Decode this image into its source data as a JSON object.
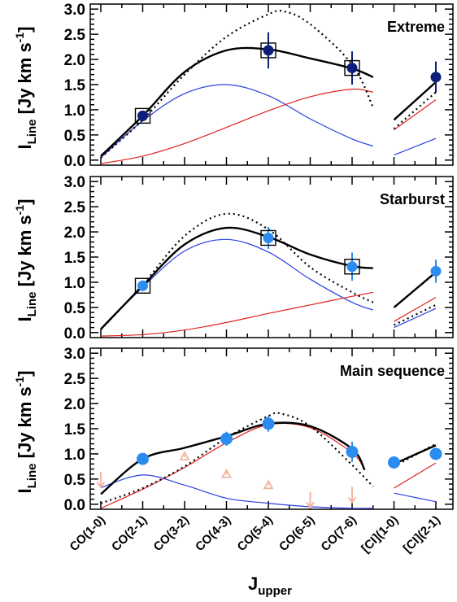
{
  "chart_data": {
    "type": "line",
    "xlabel": "J",
    "xlabel_sub": "upper",
    "ylabel": "I",
    "ylabel_sub": "Line",
    "yunit": "[Jy km s",
    "yunit_sup": "-1",
    "yunit_end": "]",
    "categories": [
      "CO(1-0)",
      "CO(2-1)",
      "CO(3-2)",
      "CO(4-3)",
      "CO(5-4)",
      "CO(6-5)",
      "CO(7-6)",
      "[CI](1-0)",
      "[CI](2-1)"
    ],
    "yticks": [
      0.0,
      0.5,
      1.0,
      1.5,
      2.0,
      2.5,
      3.0
    ],
    "ytick_labels": [
      "0.0",
      "0.5",
      "1.0",
      "1.5",
      "2.0",
      "2.5",
      "3.0"
    ],
    "ylim": [
      -0.1,
      3.1
    ],
    "panels": [
      {
        "title": "Extreme",
        "marker_color": "#0d1f7a",
        "boxed": true,
        "points": [
          {
            "x": 1,
            "y": 0.88,
            "err": 0.08
          },
          {
            "x": 4,
            "y": 2.18,
            "err": 0.36
          },
          {
            "x": 6,
            "y": 1.83,
            "err": 0.33
          },
          {
            "x": 8,
            "y": 1.65,
            "err": 0.31
          }
        ],
        "upper_limits": [],
        "lower_limits": [],
        "curves": {
          "total": [
            [
              0,
              0.08
            ],
            [
              1,
              0.88
            ],
            [
              2,
              1.75
            ],
            [
              3,
              2.18
            ],
            [
              4,
              2.2
            ],
            [
              5,
              2.02
            ],
            [
              6,
              1.82
            ],
            [
              6.5,
              1.65
            ]
          ],
          "dotted": [
            [
              0,
              0.05
            ],
            [
              1,
              0.8
            ],
            [
              2,
              1.7
            ],
            [
              3,
              2.45
            ],
            [
              4,
              2.9
            ],
            [
              4.4,
              2.95
            ],
            [
              5,
              2.7
            ],
            [
              6,
              1.9
            ],
            [
              6.5,
              1.05
            ]
          ],
          "blue": [
            [
              0,
              0.05
            ],
            [
              1,
              0.78
            ],
            [
              2,
              1.32
            ],
            [
              3,
              1.5
            ],
            [
              4,
              1.28
            ],
            [
              5,
              0.82
            ],
            [
              6,
              0.42
            ],
            [
              6.5,
              0.28
            ]
          ],
          "red": [
            [
              0,
              -0.07
            ],
            [
              1,
              0.08
            ],
            [
              2,
              0.33
            ],
            [
              3,
              0.65
            ],
            [
              4,
              0.98
            ],
            [
              5,
              1.26
            ],
            [
              6,
              1.41
            ],
            [
              6.5,
              1.35
            ]
          ],
          "ci_total": [
            [
              7,
              0.8
            ],
            [
              8,
              1.55
            ]
          ],
          "ci_dotted": [
            [
              7,
              0.62
            ],
            [
              8,
              1.35
            ]
          ],
          "ci_red": [
            [
              7,
              0.6
            ],
            [
              8,
              1.2
            ]
          ],
          "ci_blue": [
            [
              7,
              0.1
            ],
            [
              8,
              0.43
            ]
          ]
        }
      },
      {
        "title": "Starburst",
        "marker_color": "#2b8cf0",
        "boxed": true,
        "points": [
          {
            "x": 1,
            "y": 0.93,
            "err": 0.09
          },
          {
            "x": 4,
            "y": 1.88,
            "err": 0.22
          },
          {
            "x": 6,
            "y": 1.31,
            "err": 0.28
          },
          {
            "x": 8,
            "y": 1.22,
            "err": 0.23
          }
        ],
        "upper_limits": [],
        "lower_limits": [],
        "curves": {
          "total": [
            [
              0,
              0.07
            ],
            [
              1,
              0.93
            ],
            [
              2,
              1.75
            ],
            [
              3,
              2.08
            ],
            [
              4,
              1.9
            ],
            [
              5,
              1.55
            ],
            [
              6,
              1.32
            ],
            [
              6.5,
              1.28
            ]
          ],
          "dotted": [
            [
              0,
              0.06
            ],
            [
              1,
              0.95
            ],
            [
              2,
              1.92
            ],
            [
              3,
              2.36
            ],
            [
              4,
              2.05
            ],
            [
              5,
              1.3
            ],
            [
              6,
              0.8
            ],
            [
              6.5,
              0.6
            ]
          ],
          "blue": [
            [
              0,
              0.06
            ],
            [
              1,
              0.9
            ],
            [
              2,
              1.62
            ],
            [
              3,
              1.85
            ],
            [
              4,
              1.6
            ],
            [
              5,
              1.06
            ],
            [
              6,
              0.6
            ],
            [
              6.5,
              0.45
            ]
          ],
          "red": [
            [
              0,
              -0.07
            ],
            [
              1,
              -0.04
            ],
            [
              2,
              0.05
            ],
            [
              3,
              0.2
            ],
            [
              4,
              0.38
            ],
            [
              5,
              0.55
            ],
            [
              6,
              0.72
            ],
            [
              6.5,
              0.8
            ]
          ],
          "ci_total": [
            [
              7,
              0.5
            ],
            [
              8,
              1.2
            ]
          ],
          "ci_dotted": [
            [
              7,
              0.15
            ],
            [
              8,
              0.55
            ]
          ],
          "ci_red": [
            [
              7,
              0.22
            ],
            [
              8,
              0.7
            ]
          ],
          "ci_blue": [
            [
              7,
              0.1
            ],
            [
              8,
              0.48
            ]
          ]
        }
      },
      {
        "title": "Main sequence",
        "marker_color": "#2b8cf0",
        "boxed": false,
        "points": [
          {
            "x": 1,
            "y": 0.9,
            "err": 0.07
          },
          {
            "x": 3,
            "y": 1.3,
            "err": 0.14
          },
          {
            "x": 4,
            "y": 1.6,
            "err": 0.16
          },
          {
            "x": 6,
            "y": 1.04,
            "err": 0.2
          },
          {
            "x": 7,
            "y": 0.83,
            "err": 0.07
          },
          {
            "x": 8,
            "y": 1.0,
            "err": 0.12
          }
        ],
        "upper_limits": [
          {
            "x": 0,
            "y": 0.55
          },
          {
            "x": 5,
            "y": 0.15
          },
          {
            "x": 6,
            "y": 0.25
          }
        ],
        "lower_limits": [
          {
            "x": 2,
            "y": 0.95
          },
          {
            "x": 3,
            "y": 0.6
          },
          {
            "x": 4,
            "y": 0.38
          }
        ],
        "curves": {
          "total": [
            [
              0,
              0.2
            ],
            [
              1,
              0.9
            ],
            [
              2,
              1.12
            ],
            [
              3,
              1.35
            ],
            [
              4,
              1.6
            ],
            [
              5,
              1.55
            ],
            [
              6,
              1.1
            ],
            [
              6.3,
              0.68
            ]
          ],
          "dotted": [
            [
              0,
              0.02
            ],
            [
              1,
              0.32
            ],
            [
              2,
              0.75
            ],
            [
              3,
              1.32
            ],
            [
              4,
              1.75
            ],
            [
              4.3,
              1.8
            ],
            [
              5,
              1.55
            ],
            [
              6,
              0.78
            ],
            [
              6.5,
              0.35
            ]
          ],
          "blue": [
            [
              0,
              0.33
            ],
            [
              1,
              0.58
            ],
            [
              2,
              0.38
            ],
            [
              3,
              0.12
            ],
            [
              4,
              0.02
            ],
            [
              5,
              -0.05
            ],
            [
              6,
              -0.08
            ],
            [
              6.5,
              -0.08
            ]
          ],
          "red": [
            [
              0,
              -0.08
            ],
            [
              1,
              0.3
            ],
            [
              2,
              0.73
            ],
            [
              3,
              1.22
            ],
            [
              4,
              1.58
            ],
            [
              5,
              1.52
            ],
            [
              6,
              1.02
            ],
            [
              6.3,
              0.68
            ]
          ],
          "ci_total": [
            [
              7,
              0.8
            ],
            [
              8,
              1.17
            ]
          ],
          "ci_dotted": [
            [
              7,
              0.75
            ],
            [
              8,
              1.2
            ]
          ],
          "ci_red": [
            [
              7,
              0.32
            ],
            [
              8,
              0.82
            ]
          ],
          "ci_blue": [
            [
              7,
              0.22
            ],
            [
              8,
              0.05
            ]
          ]
        }
      }
    ],
    "colors": {
      "total": "#000000",
      "blue_component": "#2a3fe0",
      "red_component": "#e02020",
      "limit_symbols": "#f2b6a0"
    }
  }
}
